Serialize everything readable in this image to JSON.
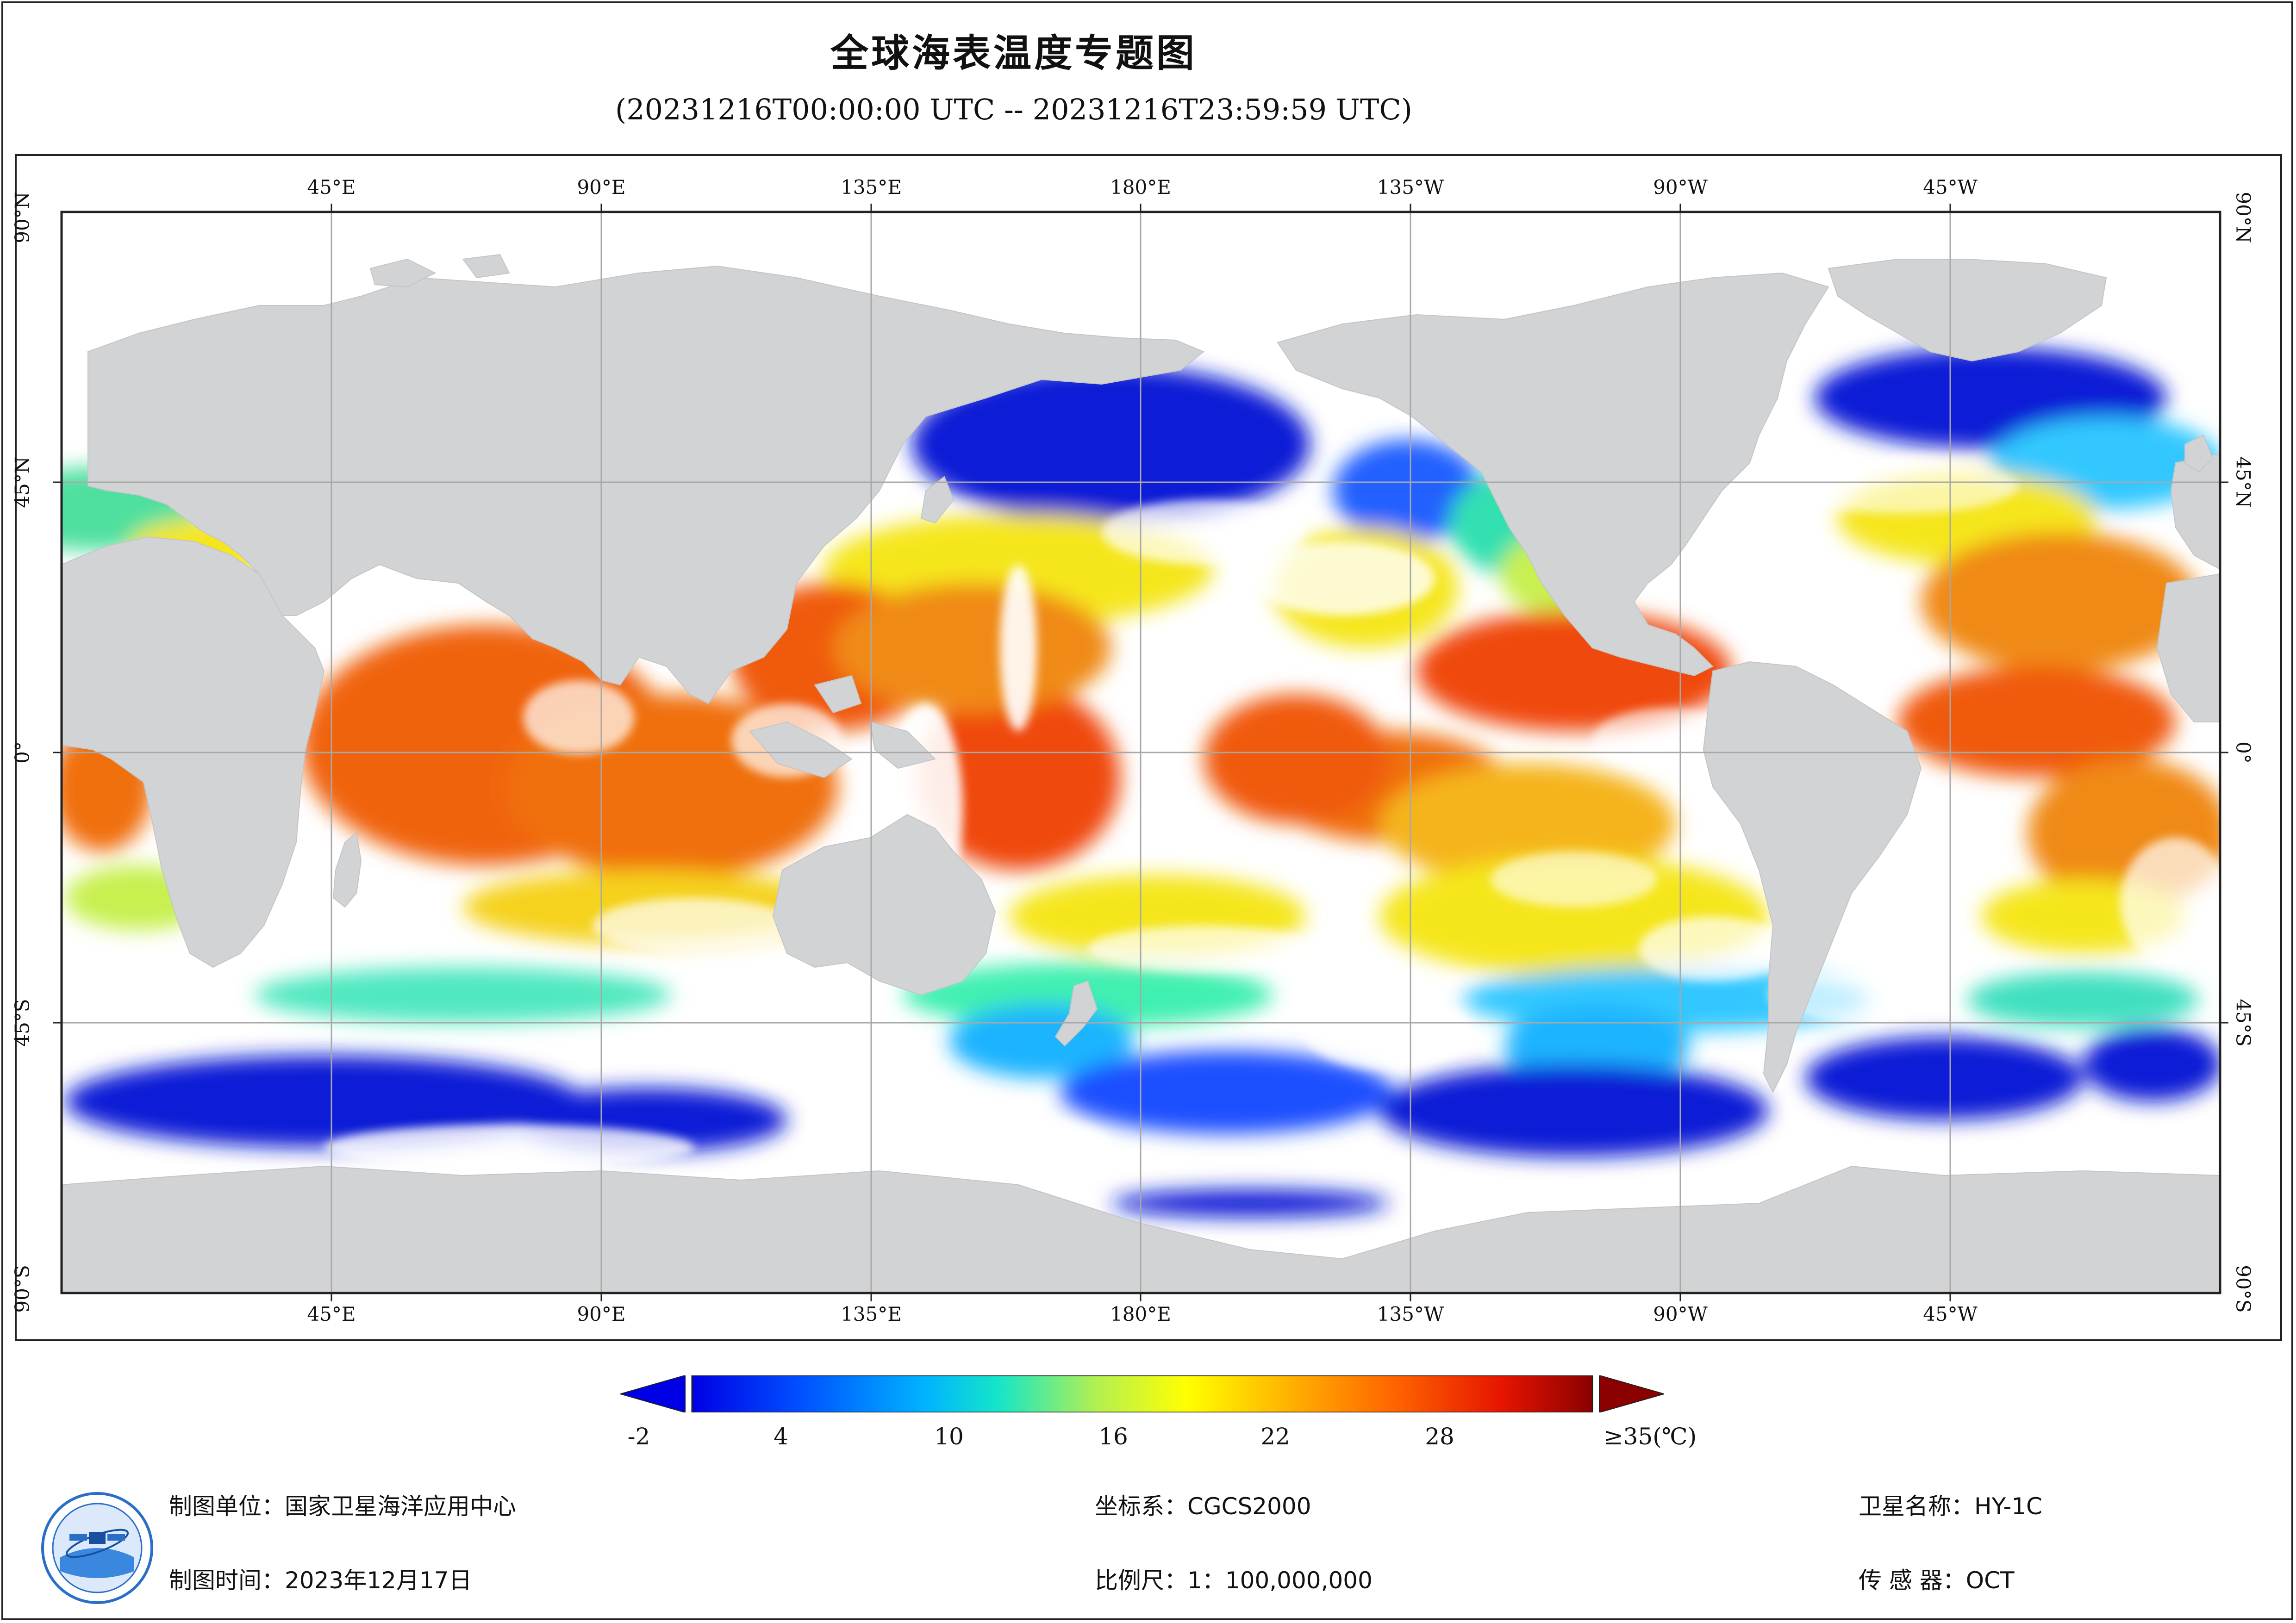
{
  "title": "全球海表温度专题图",
  "subtitle": "(20231216T00:00:00 UTC -- 20231216T23:59:59 UTC)",
  "map": {
    "lon_labels_top": [
      "45°E",
      "90°E",
      "135°E",
      "180°E",
      "135°W",
      "90°W",
      "45°W"
    ],
    "lon_labels_bottom": [
      "45°E",
      "90°E",
      "135°E",
      "180°E",
      "135°W",
      "90°W",
      "45°W"
    ],
    "lat_labels": [
      "90°N",
      "45°N",
      "0°",
      "45°S",
      "90°S"
    ],
    "colors": {
      "land": "#d2d3d5",
      "cloud": "#ffffff",
      "grid": "#9a9a9a"
    },
    "ocean_regions": [
      {
        "region": "North Pacific subarctic",
        "temp_class": "cold",
        "color": "#0a1fd6"
      },
      {
        "region": "Southern Ocean",
        "temp_class": "cold",
        "color": "#0a1fd6"
      },
      {
        "region": "Western Pacific warm pool",
        "temp_class": "warm",
        "color": "#f04a0c"
      },
      {
        "region": "Indian Ocean",
        "temp_class": "warm",
        "color": "#f0640c"
      },
      {
        "region": "Tropical Atlantic",
        "temp_class": "warm",
        "color": "#f07010"
      },
      {
        "region": "Subtropical gyres",
        "temp_class": "moderate",
        "color": "#f5e61a"
      }
    ]
  },
  "legend": {
    "ticks": [
      "-2",
      "4",
      "10",
      "16",
      "22",
      "28",
      "≥35(℃)"
    ],
    "min": -2,
    "max": 35,
    "colors": [
      "#0000e6",
      "#0050ff",
      "#00b4ff",
      "#14e6c8",
      "#b4f050",
      "#ffff00",
      "#ffb400",
      "#ff6400",
      "#e61400",
      "#8b0000"
    ]
  },
  "footer": {
    "unit_label": "制图单位：国家卫星海洋应用中心",
    "time_label": "制图时间：2023年12月17日",
    "crs_label": "坐标系：CGCS2000",
    "scale_label": "比例尺：1：100,000,000",
    "satellite_label": "卫星名称：HY-1C",
    "sensor_label": "传 感 器：OCT"
  }
}
